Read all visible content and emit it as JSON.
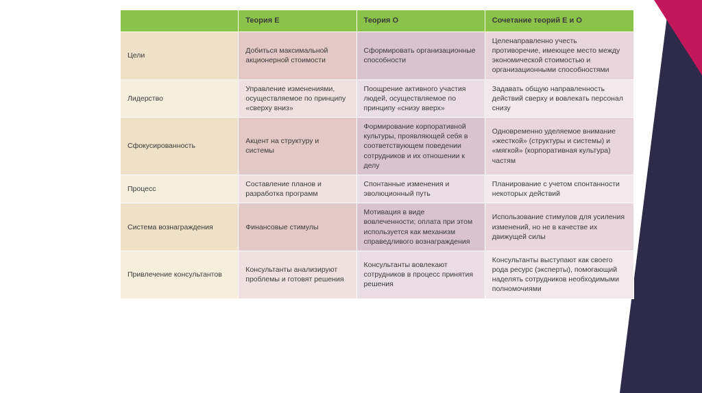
{
  "table": {
    "headers": [
      "",
      "Теория Е",
      "Теория О",
      "Сочетание теорий Е и О"
    ],
    "rows": [
      {
        "label": "Цели",
        "c1": "Добиться максимальной акционерной стоимости",
        "c2": "Сформировать организационные способности",
        "c3": "Целенаправленно учесть противоречие, имеющее место между экономической стоимостью и организационными способностями"
      },
      {
        "label": "Лидерство",
        "c1": "Управление изменениями, осуществляемое по принципу «сверху вниз»",
        "c2": "Поощрение активного участия людей, осуществляемое по принципу «снизу вверх»",
        "c3": "Задавать общую направленность действий сверху и вовлекать персонал снизу"
      },
      {
        "label": "Сфокусированность",
        "c1": "Акцент на структуру и системы",
        "c2": "Формирование корпоративной культуры, проявляющей себя в соответствующем поведении сотрудников и их отношении к делу",
        "c3": "Одновременно уделяемое внимание «жесткой» (структуры и системы) и «мягкой» (корпоративная культура) частям"
      },
      {
        "label": "Процесс",
        "c1": "Составление планов и разработка программ",
        "c2": "Спонтанные изменения и эволюционный путь",
        "c3": "Планирование с учетом спонтанности некоторых действий"
      },
      {
        "label": "Система вознаграждения",
        "c1": "Финансовые стимулы",
        "c2": "Мотивация в виде вовлеченности; оплата при этом используется как механизм справедливого вознаграждения",
        "c3": "Использование стимулов для усиления изменений, но не в качестве их движущей силы"
      },
      {
        "label": "Привлечение консультантов",
        "c1": "Консультанты анализируют проблемы и готовят решения",
        "c2": "Консультанты вовлекают сотрудников в процесс принятия решения",
        "c3": "Консультанты выступают как своего рода ресурс (эксперты), помогающий наделять сотрудников необходимыми полномочиями"
      }
    ]
  },
  "colors": {
    "header_bg": "#8bc34a",
    "magenta": "#c2185b",
    "dark": "#2d2a4a"
  }
}
